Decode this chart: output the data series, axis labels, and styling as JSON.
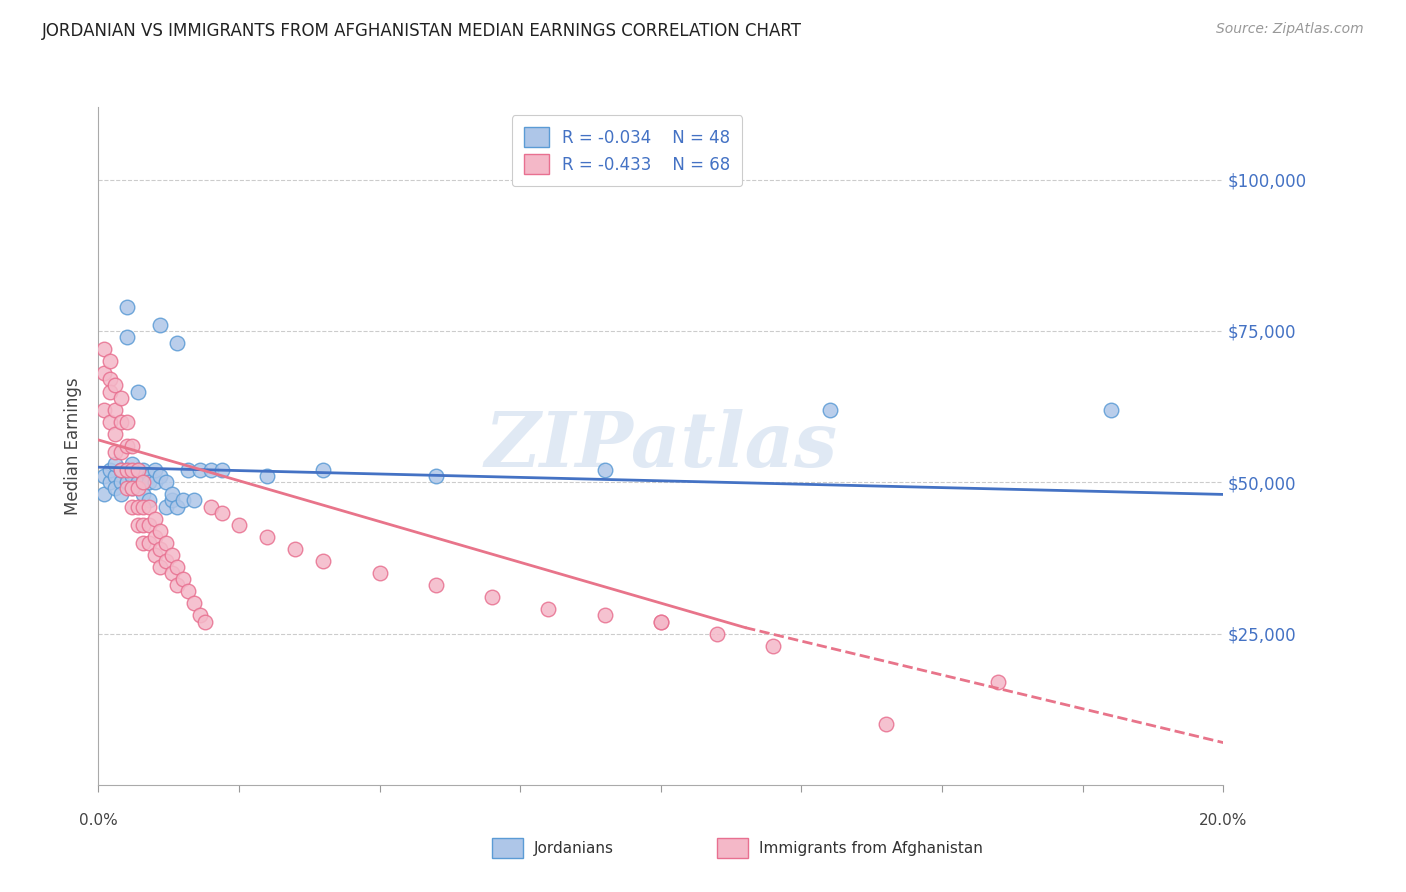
{
  "title": "JORDANIAN VS IMMIGRANTS FROM AFGHANISTAN MEDIAN EARNINGS CORRELATION CHART",
  "source": "Source: ZipAtlas.com",
  "ylabel": "Median Earnings",
  "y_ticks": [
    25000,
    50000,
    75000,
    100000
  ],
  "y_tick_labels": [
    "$25,000",
    "$50,000",
    "$75,000",
    "$100,000"
  ],
  "x_min": 0.0,
  "x_max": 0.2,
  "y_min": 0,
  "y_max": 112000,
  "jordanian_color": "#aec6e8",
  "jordanian_edge": "#5b9bd5",
  "afghanistan_color": "#f4b8c8",
  "afghanistan_edge": "#e87090",
  "trend_blue": "#4472c4",
  "trend_pink": "#e8748a",
  "legend_r1": "R = -0.034",
  "legend_n1": "N = 48",
  "legend_r2": "R = -0.433",
  "legend_n2": "N = 68",
  "watermark": "ZIPatlas",
  "legend_label1": "Jordanians",
  "legend_label2": "Immigrants from Afghanistan",
  "jordanian_points": [
    [
      0.001,
      51000
    ],
    [
      0.001,
      48000
    ],
    [
      0.002,
      50000
    ],
    [
      0.002,
      52000
    ],
    [
      0.003,
      51000
    ],
    [
      0.003,
      53000
    ],
    [
      0.003,
      49000
    ],
    [
      0.004,
      50000
    ],
    [
      0.004,
      52000
    ],
    [
      0.004,
      48000
    ],
    [
      0.005,
      79000
    ],
    [
      0.005,
      74000
    ],
    [
      0.005,
      52000
    ],
    [
      0.005,
      50000
    ],
    [
      0.006,
      51000
    ],
    [
      0.006,
      53000
    ],
    [
      0.006,
      49000
    ],
    [
      0.007,
      50000
    ],
    [
      0.007,
      52000
    ],
    [
      0.007,
      65000
    ],
    [
      0.008,
      50000
    ],
    [
      0.008,
      52000
    ],
    [
      0.008,
      48000
    ],
    [
      0.009,
      51000
    ],
    [
      0.009,
      50000
    ],
    [
      0.009,
      47000
    ],
    [
      0.01,
      50000
    ],
    [
      0.01,
      52000
    ],
    [
      0.011,
      51000
    ],
    [
      0.011,
      76000
    ],
    [
      0.012,
      50000
    ],
    [
      0.012,
      46000
    ],
    [
      0.013,
      47000
    ],
    [
      0.013,
      48000
    ],
    [
      0.014,
      46000
    ],
    [
      0.014,
      73000
    ],
    [
      0.015,
      47000
    ],
    [
      0.016,
      52000
    ],
    [
      0.017,
      47000
    ],
    [
      0.018,
      52000
    ],
    [
      0.02,
      52000
    ],
    [
      0.022,
      52000
    ],
    [
      0.03,
      51000
    ],
    [
      0.04,
      52000
    ],
    [
      0.06,
      51000
    ],
    [
      0.09,
      52000
    ],
    [
      0.13,
      62000
    ],
    [
      0.18,
      62000
    ]
  ],
  "afghanistan_points": [
    [
      0.001,
      72000
    ],
    [
      0.001,
      68000
    ],
    [
      0.001,
      62000
    ],
    [
      0.002,
      70000
    ],
    [
      0.002,
      67000
    ],
    [
      0.002,
      65000
    ],
    [
      0.002,
      60000
    ],
    [
      0.003,
      66000
    ],
    [
      0.003,
      62000
    ],
    [
      0.003,
      58000
    ],
    [
      0.003,
      55000
    ],
    [
      0.004,
      64000
    ],
    [
      0.004,
      60000
    ],
    [
      0.004,
      55000
    ],
    [
      0.004,
      52000
    ],
    [
      0.005,
      60000
    ],
    [
      0.005,
      56000
    ],
    [
      0.005,
      52000
    ],
    [
      0.005,
      49000
    ],
    [
      0.006,
      56000
    ],
    [
      0.006,
      52000
    ],
    [
      0.006,
      49000
    ],
    [
      0.006,
      46000
    ],
    [
      0.007,
      52000
    ],
    [
      0.007,
      49000
    ],
    [
      0.007,
      46000
    ],
    [
      0.007,
      43000
    ],
    [
      0.008,
      50000
    ],
    [
      0.008,
      46000
    ],
    [
      0.008,
      43000
    ],
    [
      0.008,
      40000
    ],
    [
      0.009,
      46000
    ],
    [
      0.009,
      43000
    ],
    [
      0.009,
      40000
    ],
    [
      0.01,
      44000
    ],
    [
      0.01,
      41000
    ],
    [
      0.01,
      38000
    ],
    [
      0.011,
      42000
    ],
    [
      0.011,
      39000
    ],
    [
      0.011,
      36000
    ],
    [
      0.012,
      40000
    ],
    [
      0.012,
      37000
    ],
    [
      0.013,
      38000
    ],
    [
      0.013,
      35000
    ],
    [
      0.014,
      36000
    ],
    [
      0.014,
      33000
    ],
    [
      0.015,
      34000
    ],
    [
      0.016,
      32000
    ],
    [
      0.017,
      30000
    ],
    [
      0.018,
      28000
    ],
    [
      0.019,
      27000
    ],
    [
      0.02,
      46000
    ],
    [
      0.022,
      45000
    ],
    [
      0.025,
      43000
    ],
    [
      0.03,
      41000
    ],
    [
      0.035,
      39000
    ],
    [
      0.04,
      37000
    ],
    [
      0.05,
      35000
    ],
    [
      0.06,
      33000
    ],
    [
      0.07,
      31000
    ],
    [
      0.08,
      29000
    ],
    [
      0.09,
      28000
    ],
    [
      0.1,
      27000
    ],
    [
      0.11,
      25000
    ],
    [
      0.12,
      23000
    ],
    [
      0.14,
      10000
    ],
    [
      0.1,
      27000
    ],
    [
      0.16,
      17000
    ]
  ],
  "jordan_trend": [
    0.0,
    0.2,
    52500,
    48000
  ],
  "afghan_trend_solid": [
    0.0,
    0.115,
    57000,
    26000
  ],
  "afghan_trend_dash": [
    0.115,
    0.2,
    26000,
    7000
  ]
}
